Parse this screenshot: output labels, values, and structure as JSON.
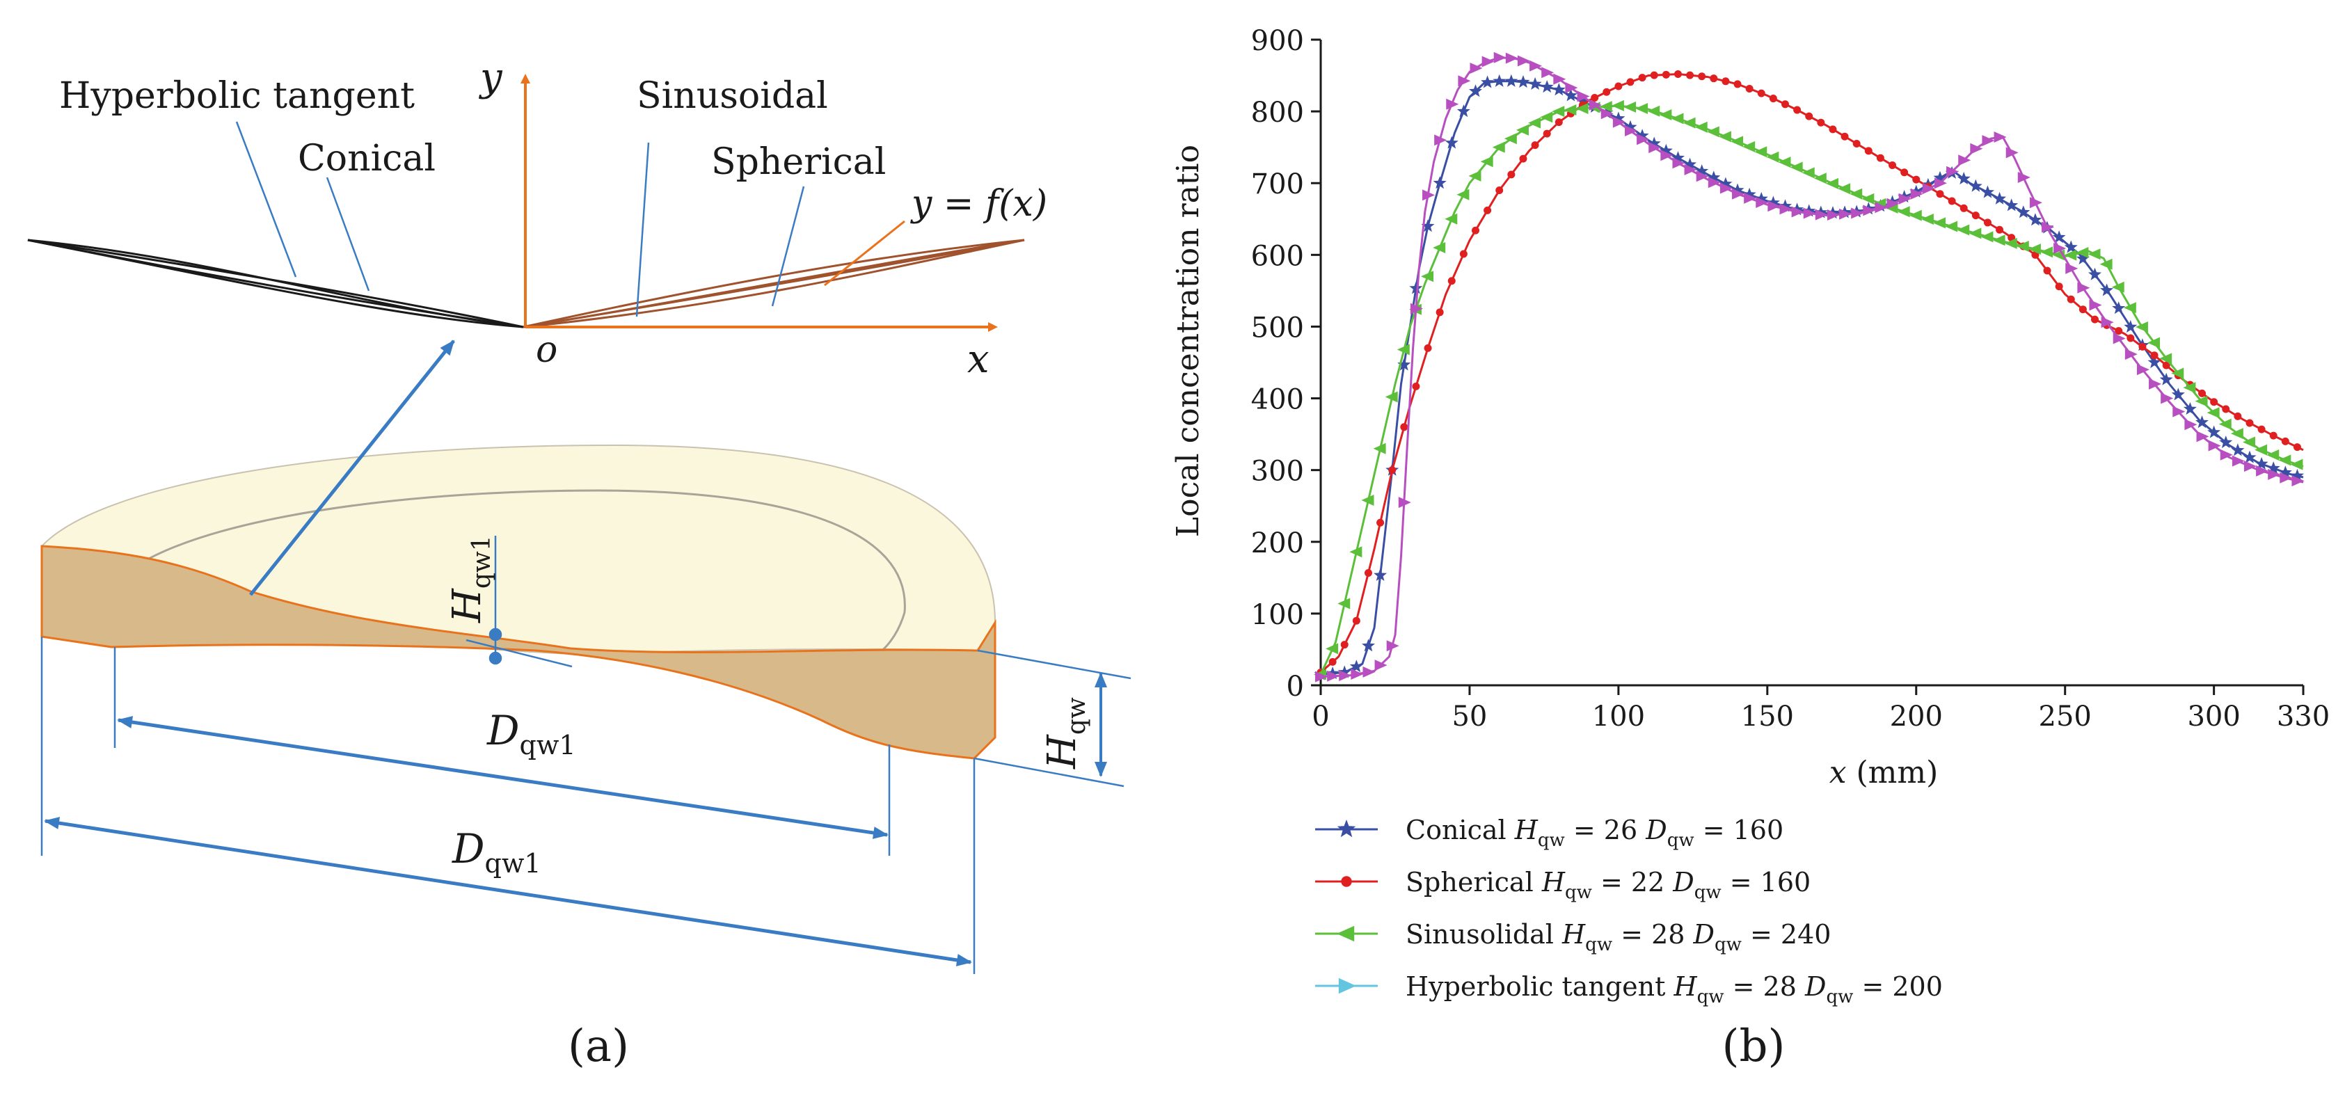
{
  "panel_a": {
    "labels": {
      "hyperbolic_tangent": "Hyperbolic tangent",
      "conical": "Conical",
      "sinusoidal": "Sinusoidal",
      "spherical": "Spherical",
      "y_axis": "y",
      "x_axis": "x",
      "origin": "o",
      "function": "y = f(x)",
      "h_qw1": "H",
      "h_qw1_sub": "qw1",
      "h_qw": "H",
      "h_qw_sub": "qw",
      "d_qw1_inner": "D",
      "d_qw1_inner_sub": "qw1",
      "d_qw1_outer": "D",
      "d_qw1_outer_sub": "qw1"
    },
    "caption": "(a)",
    "colors": {
      "axis": "#e8731c",
      "leader": "#3a7cc4",
      "cup_side": "#d8b98a",
      "cup_top": "#fbf7dc",
      "outline": "#e8731c"
    }
  },
  "panel_b": {
    "caption": "(b)",
    "legend": [
      {
        "label": "Conical",
        "h": "H",
        "hsub": "qw",
        "heq": " = 26 ",
        "d": "D",
        "dsub": "qw",
        "deq": " = 160"
      },
      {
        "label": "Spherical",
        "h": "H",
        "hsub": "qw",
        "heq": " = 22 ",
        "d": "D",
        "dsub": "qw",
        "deq": " = 160"
      },
      {
        "label": "Sinusolidal",
        "h": "H",
        "hsub": "qw",
        "heq": " = 28 ",
        "d": "D",
        "dsub": "qw",
        "deq": " = 240"
      },
      {
        "label": "Hyperbolic tangent",
        "h": "H",
        "hsub": "qw",
        "heq": " = 28 ",
        "d": "D",
        "dsub": "qw",
        "deq": " = 200"
      }
    ]
  },
  "chart_data": {
    "type": "line",
    "title": "",
    "xlabel_var": "x",
    "xlabel_unit": " (mm)",
    "ylabel": "Local concentration ratio",
    "xlim": [
      0,
      330
    ],
    "ylim": [
      0,
      900
    ],
    "xticks": [
      0,
      50,
      100,
      150,
      200,
      250,
      300,
      330
    ],
    "yticks": [
      0,
      100,
      200,
      300,
      400,
      500,
      600,
      700,
      800,
      900
    ],
    "series": [
      {
        "name": "Conical Hqw = 26 Dqw = 160",
        "color": "#3a4fa3",
        "marker": "star",
        "points": [
          [
            0,
            15
          ],
          [
            8,
            18
          ],
          [
            14,
            30
          ],
          [
            18,
            80
          ],
          [
            21,
            190
          ],
          [
            24,
            300
          ],
          [
            27,
            420
          ],
          [
            30,
            500
          ],
          [
            33,
            580
          ],
          [
            36,
            640
          ],
          [
            40,
            700
          ],
          [
            45,
            770
          ],
          [
            50,
            820
          ],
          [
            55,
            840
          ],
          [
            60,
            842
          ],
          [
            65,
            842
          ],
          [
            70,
            840
          ],
          [
            80,
            830
          ],
          [
            90,
            810
          ],
          [
            100,
            790
          ],
          [
            110,
            760
          ],
          [
            120,
            735
          ],
          [
            130,
            712
          ],
          [
            140,
            690
          ],
          [
            150,
            675
          ],
          [
            160,
            663
          ],
          [
            170,
            658
          ],
          [
            180,
            660
          ],
          [
            190,
            670
          ],
          [
            200,
            688
          ],
          [
            205,
            700
          ],
          [
            210,
            712
          ],
          [
            213,
            715
          ],
          [
            218,
            700
          ],
          [
            225,
            685
          ],
          [
            235,
            662
          ],
          [
            245,
            635
          ],
          [
            255,
            600
          ],
          [
            265,
            545
          ],
          [
            275,
            480
          ],
          [
            285,
            420
          ],
          [
            295,
            370
          ],
          [
            305,
            335
          ],
          [
            315,
            310
          ],
          [
            325,
            295
          ],
          [
            330,
            290
          ]
        ]
      },
      {
        "name": "Spherical Hqw = 22 Dqw = 160",
        "color": "#e02020",
        "marker": "circle",
        "points": [
          [
            0,
            18
          ],
          [
            6,
            40
          ],
          [
            12,
            90
          ],
          [
            18,
            190
          ],
          [
            24,
            300
          ],
          [
            30,
            390
          ],
          [
            36,
            470
          ],
          [
            42,
            545
          ],
          [
            50,
            620
          ],
          [
            60,
            690
          ],
          [
            70,
            745
          ],
          [
            80,
            785
          ],
          [
            90,
            815
          ],
          [
            100,
            835
          ],
          [
            110,
            850
          ],
          [
            120,
            852
          ],
          [
            130,
            848
          ],
          [
            140,
            838
          ],
          [
            150,
            822
          ],
          [
            160,
            802
          ],
          [
            170,
            780
          ],
          [
            180,
            755
          ],
          [
            190,
            730
          ],
          [
            200,
            705
          ],
          [
            210,
            680
          ],
          [
            220,
            655
          ],
          [
            230,
            630
          ],
          [
            240,
            600
          ],
          [
            250,
            545
          ],
          [
            260,
            510
          ],
          [
            270,
            490
          ],
          [
            280,
            460
          ],
          [
            290,
            425
          ],
          [
            300,
            395
          ],
          [
            310,
            370
          ],
          [
            320,
            348
          ],
          [
            330,
            328
          ]
        ]
      },
      {
        "name": "Sinusolidal Hqw = 28 Dqw = 240",
        "color": "#5bbf3a",
        "marker": "triangle-left",
        "points": [
          [
            0,
            15
          ],
          [
            5,
            60
          ],
          [
            10,
            150
          ],
          [
            15,
            240
          ],
          [
            20,
            330
          ],
          [
            25,
            420
          ],
          [
            30,
            500
          ],
          [
            35,
            560
          ],
          [
            40,
            610
          ],
          [
            45,
            660
          ],
          [
            50,
            700
          ],
          [
            60,
            750
          ],
          [
            70,
            780
          ],
          [
            80,
            800
          ],
          [
            90,
            805
          ],
          [
            100,
            808
          ],
          [
            110,
            803
          ],
          [
            120,
            790
          ],
          [
            130,
            775
          ],
          [
            140,
            758
          ],
          [
            150,
            740
          ],
          [
            160,
            722
          ],
          [
            170,
            703
          ],
          [
            180,
            685
          ],
          [
            190,
            668
          ],
          [
            200,
            655
          ],
          [
            210,
            642
          ],
          [
            220,
            630
          ],
          [
            230,
            618
          ],
          [
            240,
            608
          ],
          [
            250,
            598
          ],
          [
            258,
            605
          ],
          [
            263,
            595
          ],
          [
            268,
            555
          ],
          [
            275,
            505
          ],
          [
            285,
            450
          ],
          [
            295,
            400
          ],
          [
            305,
            360
          ],
          [
            315,
            330
          ],
          [
            325,
            312
          ],
          [
            330,
            305
          ]
        ]
      },
      {
        "name": "Hyperbolic tangent Hqw = 28 Dqw = 200",
        "color": "#b84fc0",
        "marker": "triangle-right",
        "points": [
          [
            0,
            12
          ],
          [
            10,
            14
          ],
          [
            18,
            20
          ],
          [
            23,
            40
          ],
          [
            25,
            70
          ],
          [
            27,
            180
          ],
          [
            29,
            330
          ],
          [
            31,
            470
          ],
          [
            33,
            580
          ],
          [
            35,
            660
          ],
          [
            38,
            730
          ],
          [
            42,
            790
          ],
          [
            46,
            830
          ],
          [
            50,
            855
          ],
          [
            55,
            868
          ],
          [
            60,
            875
          ],
          [
            65,
            874
          ],
          [
            70,
            868
          ],
          [
            80,
            845
          ],
          [
            90,
            815
          ],
          [
            100,
            785
          ],
          [
            110,
            755
          ],
          [
            120,
            728
          ],
          [
            130,
            705
          ],
          [
            140,
            685
          ],
          [
            150,
            670
          ],
          [
            160,
            660
          ],
          [
            170,
            655
          ],
          [
            180,
            658
          ],
          [
            190,
            668
          ],
          [
            200,
            685
          ],
          [
            208,
            700
          ],
          [
            215,
            728
          ],
          [
            220,
            748
          ],
          [
            225,
            762
          ],
          [
            229,
            765
          ],
          [
            233,
            735
          ],
          [
            238,
            690
          ],
          [
            245,
            630
          ],
          [
            255,
            560
          ],
          [
            265,
            500
          ],
          [
            275,
            445
          ],
          [
            285,
            395
          ],
          [
            295,
            350
          ],
          [
            305,
            318
          ],
          [
            315,
            300
          ],
          [
            325,
            288
          ],
          [
            330,
            283
          ]
        ]
      }
    ]
  }
}
